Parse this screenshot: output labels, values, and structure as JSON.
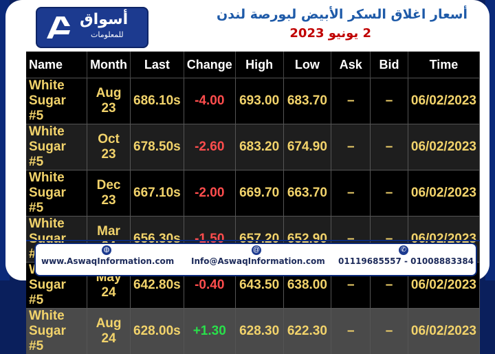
{
  "header": {
    "logo_name_ar": "أسواق",
    "logo_sub_ar": "للمعلومات",
    "title": "أسعار اغلاق السكر الأبيض لبورصة لندن",
    "subtitle": "2 يونيو 2023"
  },
  "table": {
    "columns": [
      "Name",
      "Month",
      "Last",
      "Change",
      "High",
      "Low",
      "Ask",
      "Bid",
      "Time"
    ],
    "rows": [
      {
        "name": "White Sugar #5",
        "month": "Aug 23",
        "last": "686.10s",
        "change": "-4.00",
        "high": "693.00",
        "low": "683.70",
        "ask": "–",
        "bid": "–",
        "time": "06/02/2023"
      },
      {
        "name": "White Sugar #5",
        "month": "Oct 23",
        "last": "678.50s",
        "change": "-2.60",
        "high": "683.20",
        "low": "674.90",
        "ask": "–",
        "bid": "–",
        "time": "06/02/2023"
      },
      {
        "name": "White Sugar #5",
        "month": "Dec 23",
        "last": "667.10s",
        "change": "-2.00",
        "high": "669.70",
        "low": "663.70",
        "ask": "–",
        "bid": "–",
        "time": "06/02/2023"
      },
      {
        "name": "White Sugar #5",
        "month": "Mar 24",
        "last": "656.30s",
        "change": "-1.50",
        "high": "657.20",
        "low": "652.90",
        "ask": "–",
        "bid": "–",
        "time": "06/02/2023"
      },
      {
        "name": "White Sugar #5",
        "month": "May 24",
        "last": "642.80s",
        "change": "-0.40",
        "high": "643.50",
        "low": "638.00",
        "ask": "–",
        "bid": "–",
        "time": "06/02/2023"
      },
      {
        "name": "White Sugar #5",
        "month": "Aug 24",
        "last": "628.00s",
        "change": "+1.30",
        "high": "628.30",
        "low": "622.30",
        "ask": "–",
        "bid": "–",
        "time": "06/02/2023"
      }
    ]
  },
  "footer": {
    "website": "www.AswaqInformation.com",
    "email": "Info@AswaqInformation.com",
    "phone": "01119685557 - 01008883384"
  }
}
